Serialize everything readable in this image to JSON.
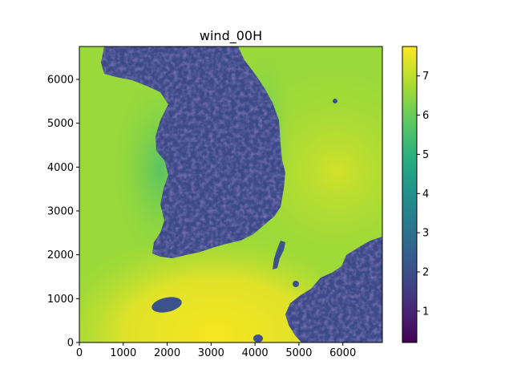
{
  "chart_data": {
    "type": "heatmap",
    "title": "wind_00H",
    "xlabel": "",
    "ylabel": "",
    "xlim": [
      0,
      6900
    ],
    "ylim": [
      0,
      6750
    ],
    "x_ticks": [
      0,
      1000,
      2000,
      3000,
      4000,
      5000,
      6000
    ],
    "y_ticks": [
      0,
      1000,
      2000,
      3000,
      4000,
      5000,
      6000
    ],
    "colorbar": {
      "colormap": "viridis",
      "range": [
        0.2,
        7.75
      ],
      "ticks": [
        1,
        2,
        3,
        4,
        5,
        6,
        7
      ]
    },
    "field": {
      "open_sea_value": 6.2,
      "southern_sea_value": 7.4,
      "land_value": 1.2,
      "land_regions": [
        "korean-peninsula",
        "japan-kyushu",
        "jeju-island",
        "tsushima-islands"
      ]
    },
    "grid": false
  }
}
